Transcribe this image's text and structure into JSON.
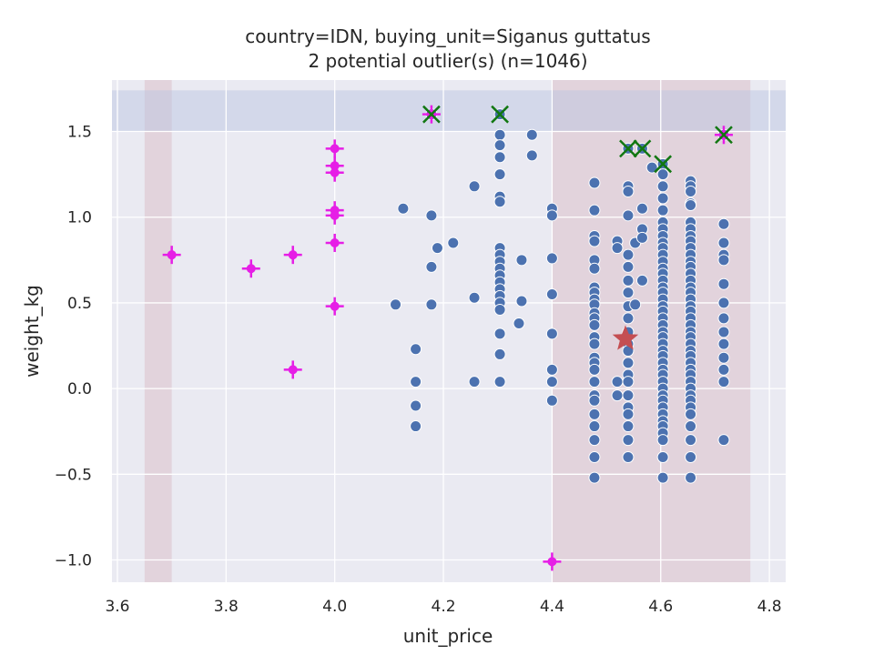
{
  "chart_data": {
    "type": "scatter",
    "title": "country=IDN, buying_unit=Siganus guttatus",
    "subtitle": "2 potential outlier(s) (n=1046)",
    "xlabel": "unit_price",
    "ylabel": "weight_kg",
    "xlim": [
      3.59,
      4.83
    ],
    "ylim": [
      -1.13,
      1.8
    ],
    "xticks": [
      3.6,
      3.8,
      4.0,
      4.2,
      4.4,
      4.6,
      4.8
    ],
    "yticks": [
      -1.0,
      -0.5,
      0.0,
      0.5,
      1.0,
      1.5
    ],
    "xtick_labels": [
      "3.6",
      "3.8",
      "4.0",
      "4.2",
      "4.4",
      "4.6",
      "4.8"
    ],
    "ytick_labels": [
      "−1.0",
      "−0.5",
      "0.0",
      "0.5",
      "1.0",
      "1.5"
    ],
    "grid": true,
    "colors": {
      "background": "#eaeaf2",
      "grid": "#ffffff",
      "points": "#4c72b0",
      "magenta_flags": "#e61ee6",
      "green_x": "#117711",
      "star": "#c44e52",
      "x_band": "#d4a8b4",
      "y_band": "#b8c4e0"
    },
    "shaded_x_bands": [
      [
        3.65,
        3.7
      ],
      [
        4.4,
        4.765
      ]
    ],
    "shaded_y_bands": [
      [
        1.5,
        1.74
      ]
    ],
    "center_star": {
      "x": 4.535,
      "y": 0.29
    },
    "flagged_plus_points": [
      {
        "x": 3.7,
        "y": 0.78
      },
      {
        "x": 3.846,
        "y": 0.7
      },
      {
        "x": 3.923,
        "y": 0.78
      },
      {
        "x": 3.923,
        "y": 0.11
      },
      {
        "x": 4.0,
        "y": 1.4
      },
      {
        "x": 4.0,
        "y": 1.3
      },
      {
        "x": 4.0,
        "y": 1.26
      },
      {
        "x": 4.0,
        "y": 1.04
      },
      {
        "x": 4.0,
        "y": 1.01
      },
      {
        "x": 4.0,
        "y": 0.85
      },
      {
        "x": 4.0,
        "y": 0.48
      },
      {
        "x": 4.4,
        "y": -1.01
      },
      {
        "x": 4.178,
        "y": 1.6
      },
      {
        "x": 4.716,
        "y": 1.48
      }
    ],
    "outlier_x_points": [
      {
        "x": 4.178,
        "y": 1.6
      },
      {
        "x": 4.304,
        "y": 1.6
      },
      {
        "x": 4.54,
        "y": 1.4
      },
      {
        "x": 4.566,
        "y": 1.4
      },
      {
        "x": 4.604,
        "y": 1.31
      },
      {
        "x": 4.716,
        "y": 1.48
      }
    ],
    "points": [
      {
        "x": 4.178,
        "y": 1.6
      },
      {
        "x": 4.716,
        "y": 1.48
      },
      {
        "x": 4.112,
        "y": 0.49
      },
      {
        "x": 4.126,
        "y": 1.05
      },
      {
        "x": 4.149,
        "y": 0.23
      },
      {
        "x": 4.149,
        "y": 0.04
      },
      {
        "x": 4.149,
        "y": -0.1
      },
      {
        "x": 4.149,
        "y": -0.22
      },
      {
        "x": 4.178,
        "y": 1.01
      },
      {
        "x": 4.178,
        "y": 0.71
      },
      {
        "x": 4.178,
        "y": 0.49
      },
      {
        "x": 4.189,
        "y": 0.82
      },
      {
        "x": 4.218,
        "y": 0.85
      },
      {
        "x": 4.257,
        "y": 1.18
      },
      {
        "x": 4.257,
        "y": 0.53
      },
      {
        "x": 4.257,
        "y": 0.04
      },
      {
        "x": 4.304,
        "y": 1.6
      },
      {
        "x": 4.304,
        "y": 1.48
      },
      {
        "x": 4.304,
        "y": 1.42
      },
      {
        "x": 4.304,
        "y": 1.35
      },
      {
        "x": 4.304,
        "y": 1.25
      },
      {
        "x": 4.304,
        "y": 1.12
      },
      {
        "x": 4.304,
        "y": 1.09
      },
      {
        "x": 4.304,
        "y": 0.82
      },
      {
        "x": 4.304,
        "y": 0.78
      },
      {
        "x": 4.304,
        "y": 0.74
      },
      {
        "x": 4.304,
        "y": 0.7
      },
      {
        "x": 4.304,
        "y": 0.66
      },
      {
        "x": 4.304,
        "y": 0.62
      },
      {
        "x": 4.304,
        "y": 0.58
      },
      {
        "x": 4.304,
        "y": 0.54
      },
      {
        "x": 4.304,
        "y": 0.5
      },
      {
        "x": 4.304,
        "y": 0.46
      },
      {
        "x": 4.304,
        "y": 0.32
      },
      {
        "x": 4.304,
        "y": 0.2
      },
      {
        "x": 4.304,
        "y": 0.04
      },
      {
        "x": 4.339,
        "y": 0.38
      },
      {
        "x": 4.344,
        "y": 0.51
      },
      {
        "x": 4.344,
        "y": 0.75
      },
      {
        "x": 4.363,
        "y": 1.48
      },
      {
        "x": 4.363,
        "y": 1.36
      },
      {
        "x": 4.4,
        "y": 1.05
      },
      {
        "x": 4.4,
        "y": 1.01
      },
      {
        "x": 4.4,
        "y": 0.76
      },
      {
        "x": 4.4,
        "y": 0.55
      },
      {
        "x": 4.4,
        "y": 0.32
      },
      {
        "x": 4.4,
        "y": 0.11
      },
      {
        "x": 4.4,
        "y": 0.04
      },
      {
        "x": 4.4,
        "y": -0.07
      },
      {
        "x": 4.478,
        "y": 1.2
      },
      {
        "x": 4.478,
        "y": 1.04
      },
      {
        "x": 4.478,
        "y": 0.89
      },
      {
        "x": 4.478,
        "y": 0.86
      },
      {
        "x": 4.478,
        "y": 0.75
      },
      {
        "x": 4.478,
        "y": 0.7
      },
      {
        "x": 4.478,
        "y": 0.59
      },
      {
        "x": 4.478,
        "y": 0.56
      },
      {
        "x": 4.478,
        "y": 0.52
      },
      {
        "x": 4.478,
        "y": 0.49
      },
      {
        "x": 4.478,
        "y": 0.44
      },
      {
        "x": 4.478,
        "y": 0.41
      },
      {
        "x": 4.478,
        "y": 0.37
      },
      {
        "x": 4.478,
        "y": 0.3
      },
      {
        "x": 4.478,
        "y": 0.26
      },
      {
        "x": 4.478,
        "y": 0.18
      },
      {
        "x": 4.478,
        "y": 0.15
      },
      {
        "x": 4.478,
        "y": 0.11
      },
      {
        "x": 4.478,
        "y": 0.04
      },
      {
        "x": 4.478,
        "y": -0.04
      },
      {
        "x": 4.478,
        "y": -0.07
      },
      {
        "x": 4.478,
        "y": -0.15
      },
      {
        "x": 4.478,
        "y": -0.22
      },
      {
        "x": 4.478,
        "y": -0.3
      },
      {
        "x": 4.478,
        "y": -0.4
      },
      {
        "x": 4.478,
        "y": -0.52
      },
      {
        "x": 4.52,
        "y": 0.86
      },
      {
        "x": 4.52,
        "y": 0.82
      },
      {
        "x": 4.52,
        "y": 0.04
      },
      {
        "x": 4.52,
        "y": -0.04
      },
      {
        "x": 4.54,
        "y": 1.4
      },
      {
        "x": 4.54,
        "y": 1.18
      },
      {
        "x": 4.54,
        "y": 1.15
      },
      {
        "x": 4.54,
        "y": 1.01
      },
      {
        "x": 4.54,
        "y": 0.78
      },
      {
        "x": 4.54,
        "y": 0.71
      },
      {
        "x": 4.54,
        "y": 0.63
      },
      {
        "x": 4.54,
        "y": 0.56
      },
      {
        "x": 4.54,
        "y": 0.48
      },
      {
        "x": 4.54,
        "y": 0.41
      },
      {
        "x": 4.54,
        "y": 0.33
      },
      {
        "x": 4.54,
        "y": 0.26
      },
      {
        "x": 4.54,
        "y": 0.22
      },
      {
        "x": 4.54,
        "y": 0.15
      },
      {
        "x": 4.54,
        "y": 0.08
      },
      {
        "x": 4.54,
        "y": 0.04
      },
      {
        "x": 4.54,
        "y": -0.04
      },
      {
        "x": 4.54,
        "y": -0.11
      },
      {
        "x": 4.54,
        "y": -0.15
      },
      {
        "x": 4.54,
        "y": -0.22
      },
      {
        "x": 4.54,
        "y": -0.3
      },
      {
        "x": 4.54,
        "y": -0.4
      },
      {
        "x": 4.553,
        "y": 0.85
      },
      {
        "x": 4.553,
        "y": 0.49
      },
      {
        "x": 4.566,
        "y": 1.4
      },
      {
        "x": 4.566,
        "y": 1.05
      },
      {
        "x": 4.566,
        "y": 0.93
      },
      {
        "x": 4.566,
        "y": 0.88
      },
      {
        "x": 4.566,
        "y": 0.63
      },
      {
        "x": 4.584,
        "y": 1.29
      },
      {
        "x": 4.604,
        "y": 1.31
      },
      {
        "x": 4.604,
        "y": 1.25
      },
      {
        "x": 4.604,
        "y": 1.18
      },
      {
        "x": 4.604,
        "y": 1.11
      },
      {
        "x": 4.604,
        "y": 1.04
      },
      {
        "x": 4.604,
        "y": 0.97
      },
      {
        "x": 4.604,
        "y": 0.93
      },
      {
        "x": 4.604,
        "y": 0.89
      },
      {
        "x": 4.604,
        "y": 0.85
      },
      {
        "x": 4.604,
        "y": 0.82
      },
      {
        "x": 4.604,
        "y": 0.78
      },
      {
        "x": 4.604,
        "y": 0.74
      },
      {
        "x": 4.604,
        "y": 0.7
      },
      {
        "x": 4.604,
        "y": 0.67
      },
      {
        "x": 4.604,
        "y": 0.63
      },
      {
        "x": 4.604,
        "y": 0.59
      },
      {
        "x": 4.604,
        "y": 0.56
      },
      {
        "x": 4.604,
        "y": 0.52
      },
      {
        "x": 4.604,
        "y": 0.48
      },
      {
        "x": 4.604,
        "y": 0.45
      },
      {
        "x": 4.604,
        "y": 0.41
      },
      {
        "x": 4.604,
        "y": 0.37
      },
      {
        "x": 4.604,
        "y": 0.33
      },
      {
        "x": 4.604,
        "y": 0.3
      },
      {
        "x": 4.604,
        "y": 0.26
      },
      {
        "x": 4.604,
        "y": 0.22
      },
      {
        "x": 4.604,
        "y": 0.19
      },
      {
        "x": 4.604,
        "y": 0.15
      },
      {
        "x": 4.604,
        "y": 0.11
      },
      {
        "x": 4.604,
        "y": 0.08
      },
      {
        "x": 4.604,
        "y": 0.04
      },
      {
        "x": 4.604,
        "y": 0.0
      },
      {
        "x": 4.604,
        "y": -0.04
      },
      {
        "x": 4.604,
        "y": -0.07
      },
      {
        "x": 4.604,
        "y": -0.11
      },
      {
        "x": 4.604,
        "y": -0.15
      },
      {
        "x": 4.604,
        "y": -0.19
      },
      {
        "x": 4.604,
        "y": -0.22
      },
      {
        "x": 4.604,
        "y": -0.26
      },
      {
        "x": 4.604,
        "y": -0.3
      },
      {
        "x": 4.604,
        "y": -0.4
      },
      {
        "x": 4.604,
        "y": -0.52
      },
      {
        "x": 4.655,
        "y": 1.21
      },
      {
        "x": 4.655,
        "y": 1.18
      },
      {
        "x": 4.655,
        "y": 1.15
      },
      {
        "x": 4.655,
        "y": 1.08
      },
      {
        "x": 4.655,
        "y": 1.07
      },
      {
        "x": 4.655,
        "y": 0.97
      },
      {
        "x": 4.655,
        "y": 0.93
      },
      {
        "x": 4.655,
        "y": 0.89
      },
      {
        "x": 4.655,
        "y": 0.86
      },
      {
        "x": 4.655,
        "y": 0.82
      },
      {
        "x": 4.655,
        "y": 0.78
      },
      {
        "x": 4.655,
        "y": 0.74
      },
      {
        "x": 4.655,
        "y": 0.71
      },
      {
        "x": 4.655,
        "y": 0.67
      },
      {
        "x": 4.655,
        "y": 0.63
      },
      {
        "x": 4.655,
        "y": 0.59
      },
      {
        "x": 4.655,
        "y": 0.56
      },
      {
        "x": 4.655,
        "y": 0.52
      },
      {
        "x": 4.655,
        "y": 0.48
      },
      {
        "x": 4.655,
        "y": 0.45
      },
      {
        "x": 4.655,
        "y": 0.41
      },
      {
        "x": 4.655,
        "y": 0.37
      },
      {
        "x": 4.655,
        "y": 0.33
      },
      {
        "x": 4.655,
        "y": 0.3
      },
      {
        "x": 4.655,
        "y": 0.26
      },
      {
        "x": 4.655,
        "y": 0.22
      },
      {
        "x": 4.655,
        "y": 0.19
      },
      {
        "x": 4.655,
        "y": 0.15
      },
      {
        "x": 4.655,
        "y": 0.11
      },
      {
        "x": 4.655,
        "y": 0.08
      },
      {
        "x": 4.655,
        "y": 0.04
      },
      {
        "x": 4.655,
        "y": 0.0
      },
      {
        "x": 4.655,
        "y": -0.04
      },
      {
        "x": 4.655,
        "y": -0.07
      },
      {
        "x": 4.655,
        "y": -0.11
      },
      {
        "x": 4.655,
        "y": -0.15
      },
      {
        "x": 4.655,
        "y": -0.22
      },
      {
        "x": 4.655,
        "y": -0.3
      },
      {
        "x": 4.655,
        "y": -0.4
      },
      {
        "x": 4.655,
        "y": -0.52
      },
      {
        "x": 4.716,
        "y": 0.96
      },
      {
        "x": 4.716,
        "y": 0.85
      },
      {
        "x": 4.716,
        "y": 0.78
      },
      {
        "x": 4.716,
        "y": 0.75
      },
      {
        "x": 4.716,
        "y": 0.61
      },
      {
        "x": 4.716,
        "y": 0.5
      },
      {
        "x": 4.716,
        "y": 0.41
      },
      {
        "x": 4.716,
        "y": 0.33
      },
      {
        "x": 4.716,
        "y": 0.26
      },
      {
        "x": 4.716,
        "y": 0.18
      },
      {
        "x": 4.716,
        "y": 0.11
      },
      {
        "x": 4.716,
        "y": 0.04
      },
      {
        "x": 4.716,
        "y": -0.3
      }
    ]
  }
}
